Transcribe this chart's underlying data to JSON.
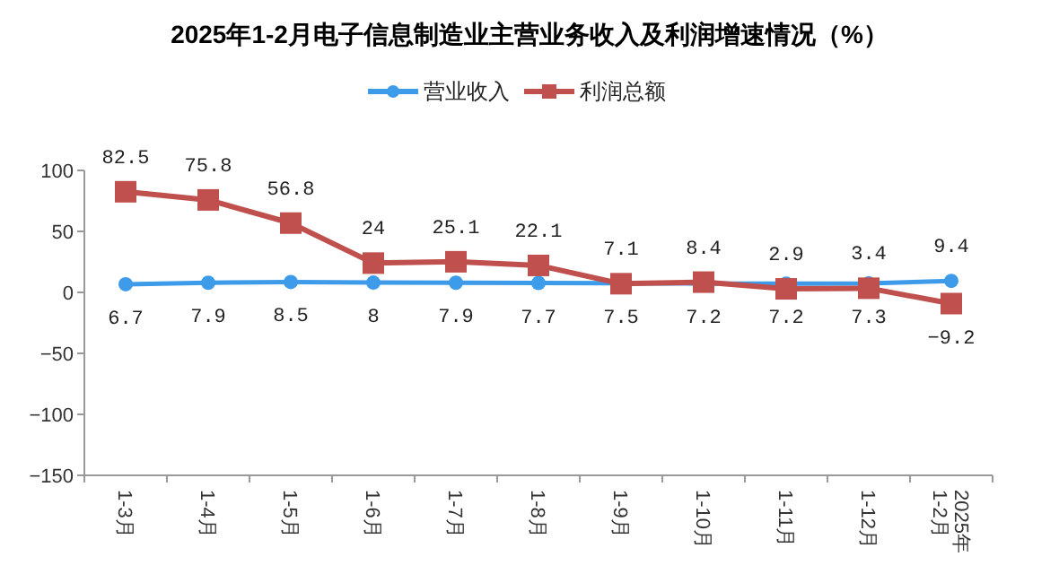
{
  "chart_data": {
    "type": "line",
    "title": "2025年1-2月电子信息制造业主营业务收入及利润增速情况（%）",
    "categories": [
      "1-3月",
      "1-4月",
      "1-5月",
      "1-6月",
      "1-7月",
      "1-8月",
      "1-9月",
      "1-10月",
      "1-11月",
      "1-12月",
      "2025年\n1-2月"
    ],
    "series": [
      {
        "name": "营业收入",
        "color": "#3d9be9",
        "marker": "circle",
        "values": [
          6.7,
          7.9,
          8.5,
          8,
          7.9,
          7.7,
          7.5,
          7.2,
          7.2,
          7.3,
          9.4
        ]
      },
      {
        "name": "利润总额",
        "color": "#c0504d",
        "marker": "square",
        "values": [
          82.5,
          75.8,
          56.8,
          24,
          25.1,
          22.1,
          7.1,
          8.4,
          2.9,
          3.4,
          -9.2
        ]
      }
    ],
    "ylim": [
      -150,
      100
    ],
    "yticks": [
      -150,
      -100,
      -50,
      0,
      50,
      100
    ],
    "grid": false,
    "legend": "top",
    "data_labels": true,
    "line_style": "solid"
  }
}
